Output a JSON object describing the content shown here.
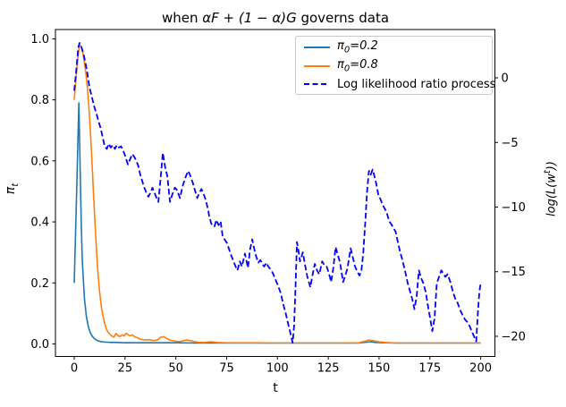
{
  "title": {
    "prefix": "when ",
    "math": "αF + (1 − α)G",
    "suffix": " governs data"
  },
  "axes": {
    "x": {
      "label": "t",
      "tick_values": [
        0,
        25,
        50,
        75,
        100,
        125,
        150,
        175,
        200
      ],
      "tick_labels": [
        "0",
        "25",
        "50",
        "75",
        "100",
        "125",
        "150",
        "175",
        "200"
      ]
    },
    "y_left": {
      "label_sym": "π",
      "label_sub": "t",
      "tick_values": [
        0.0,
        0.2,
        0.4,
        0.6,
        0.8,
        1.0
      ],
      "tick_labels": [
        "0.0",
        "0.2",
        "0.4",
        "0.6",
        "0.8",
        "1.0"
      ]
    },
    "y_right": {
      "label_pre": "log(L(w",
      "label_sup": "t",
      "label_post": "))",
      "tick_values": [
        0,
        -5,
        -10,
        -15,
        -20
      ],
      "tick_labels": [
        "0",
        "−5",
        "−10",
        "−15",
        "−20"
      ]
    }
  },
  "legend": {
    "items": [
      {
        "sym": "π",
        "sub": "0",
        "rest": "=0.2"
      },
      {
        "sym": "π",
        "sub": "0",
        "rest": "=0.8"
      },
      {
        "label": "Log likelihood ratio process"
      }
    ]
  },
  "chart_data": {
    "type": "line",
    "title": "when αF + (1 − α)G governs data",
    "xlabel": "t",
    "ylabel_left": "π_t",
    "ylabel_right": "log(L(w^t))",
    "grid": false,
    "legend_position": "upper right",
    "xlim": [
      -9.24,
      207.0
    ],
    "ylim_left": [
      -0.041,
      1.0305
    ],
    "ylim_right": [
      -21.56,
      3.74
    ],
    "axis_color": "#000000",
    "series": [
      {
        "name": "π0=0.2",
        "slug": "pi0-02-line",
        "axis": "left",
        "color": "#1f77b4",
        "style": "solid",
        "points": [
          [
            0,
            0.2
          ],
          [
            1,
            0.45
          ],
          [
            2.3,
            0.79
          ],
          [
            3,
            0.55
          ],
          [
            3.5,
            0.38
          ],
          [
            4,
            0.27
          ],
          [
            5,
            0.15
          ],
          [
            6,
            0.09
          ],
          [
            7,
            0.055
          ],
          [
            8,
            0.035
          ],
          [
            9,
            0.024
          ],
          [
            10,
            0.017
          ],
          [
            11,
            0.012
          ],
          [
            12,
            0.01
          ],
          [
            13,
            0.008
          ],
          [
            14,
            0.007
          ],
          [
            15,
            0.006
          ],
          [
            16,
            0.006
          ],
          [
            18,
            0.005
          ],
          [
            20,
            0.005
          ],
          [
            25,
            0.004
          ],
          [
            30,
            0.004
          ],
          [
            40,
            0.004
          ],
          [
            50,
            0.004
          ],
          [
            60,
            0.003
          ],
          [
            80,
            0.003
          ],
          [
            100,
            0.003
          ],
          [
            120,
            0.003
          ],
          [
            140,
            0.003
          ],
          [
            144,
            0.006
          ],
          [
            146,
            0.007
          ],
          [
            148,
            0.005
          ],
          [
            152,
            0.004
          ],
          [
            160,
            0.003
          ],
          [
            180,
            0.003
          ],
          [
            200,
            0.003
          ]
        ]
      },
      {
        "name": "π0=0.8",
        "slug": "pi0-08-line",
        "axis": "left",
        "color": "#ff7f0e",
        "style": "solid",
        "points": [
          [
            0,
            0.8
          ],
          [
            1,
            0.88
          ],
          [
            2,
            0.95
          ],
          [
            2.6,
            0.98
          ],
          [
            3.5,
            0.975
          ],
          [
            4.5,
            0.945
          ],
          [
            5.5,
            0.9
          ],
          [
            6.5,
            0.84
          ],
          [
            7.5,
            0.75
          ],
          [
            8.5,
            0.63
          ],
          [
            9.5,
            0.49
          ],
          [
            10.5,
            0.36
          ],
          [
            11.5,
            0.25
          ],
          [
            12.5,
            0.17
          ],
          [
            13.5,
            0.115
          ],
          [
            14.5,
            0.08
          ],
          [
            15.5,
            0.055
          ],
          [
            16.5,
            0.04
          ],
          [
            17.5,
            0.032
          ],
          [
            18.5,
            0.026
          ],
          [
            19.5,
            0.022
          ],
          [
            20.5,
            0.034
          ],
          [
            21.5,
            0.028
          ],
          [
            22.5,
            0.024
          ],
          [
            23.5,
            0.03
          ],
          [
            24.5,
            0.026
          ],
          [
            25.5,
            0.035
          ],
          [
            26.5,
            0.03
          ],
          [
            27.5,
            0.026
          ],
          [
            28.5,
            0.03
          ],
          [
            29.5,
            0.025
          ],
          [
            31,
            0.02
          ],
          [
            33,
            0.015
          ],
          [
            35,
            0.013
          ],
          [
            37,
            0.014
          ],
          [
            39,
            0.011
          ],
          [
            41,
            0.013
          ],
          [
            42.5,
            0.022
          ],
          [
            44,
            0.024
          ],
          [
            45.5,
            0.018
          ],
          [
            47,
            0.013
          ],
          [
            49,
            0.01
          ],
          [
            51,
            0.008
          ],
          [
            53,
            0.009
          ],
          [
            55,
            0.013
          ],
          [
            57,
            0.011
          ],
          [
            59,
            0.008
          ],
          [
            61,
            0.006
          ],
          [
            64,
            0.005
          ],
          [
            67,
            0.007
          ],
          [
            70,
            0.005
          ],
          [
            75,
            0.004
          ],
          [
            80,
            0.004
          ],
          [
            90,
            0.004
          ],
          [
            100,
            0.003
          ],
          [
            110,
            0.003
          ],
          [
            120,
            0.003
          ],
          [
            130,
            0.003
          ],
          [
            140,
            0.004
          ],
          [
            142.5,
            0.008
          ],
          [
            145,
            0.013
          ],
          [
            147,
            0.011
          ],
          [
            150,
            0.007
          ],
          [
            153,
            0.005
          ],
          [
            156,
            0.004
          ],
          [
            160,
            0.003
          ],
          [
            170,
            0.003
          ],
          [
            180,
            0.003
          ],
          [
            190,
            0.003
          ],
          [
            200,
            0.003
          ]
        ]
      },
      {
        "name": "Log likelihood ratio process",
        "slug": "log-likelihood-ratio-line",
        "axis": "right",
        "color": "#0000ff",
        "style": "dashed",
        "points": [
          [
            0,
            -1.0
          ],
          [
            1,
            0.6
          ],
          [
            2,
            2.3
          ],
          [
            2.6,
            2.7
          ],
          [
            3.5,
            2.4
          ],
          [
            4.5,
            1.9
          ],
          [
            5.5,
            1.2
          ],
          [
            6.5,
            0.3
          ],
          [
            7.5,
            -0.7
          ],
          [
            9,
            -1.7
          ],
          [
            10,
            -2.3
          ],
          [
            11,
            -2.8
          ],
          [
            12,
            -3.4
          ],
          [
            13,
            -3.9
          ],
          [
            14,
            -4.6
          ],
          [
            15,
            -5.3
          ],
          [
            16,
            -5.5
          ],
          [
            17,
            -5.1
          ],
          [
            18,
            -5.4
          ],
          [
            19,
            -5.2
          ],
          [
            20,
            -5.5
          ],
          [
            21,
            -5.2
          ],
          [
            22,
            -5.4
          ],
          [
            23,
            -5.3
          ],
          [
            24,
            -5.6
          ],
          [
            25,
            -6.0
          ],
          [
            26.4,
            -6.7
          ],
          [
            27.5,
            -6.3
          ],
          [
            28.6,
            -5.9
          ],
          [
            29.5,
            -6.1
          ],
          [
            30.5,
            -6.4
          ],
          [
            31.5,
            -6.8
          ],
          [
            32.5,
            -7.5
          ],
          [
            33.5,
            -8.0
          ],
          [
            34.5,
            -8.5
          ],
          [
            35.5,
            -8.9
          ],
          [
            36.5,
            -9.2
          ],
          [
            37.5,
            -8.9
          ],
          [
            38.5,
            -8.5
          ],
          [
            39.5,
            -8.9
          ],
          [
            40.5,
            -9.3
          ],
          [
            41.4,
            -9.6
          ],
          [
            42.5,
            -7.8
          ],
          [
            43.6,
            -5.8
          ],
          [
            44.6,
            -6.8
          ],
          [
            45.8,
            -7.6
          ],
          [
            47.1,
            -9.6
          ],
          [
            48.3,
            -9.0
          ],
          [
            49.5,
            -8.5
          ],
          [
            50.7,
            -8.7
          ],
          [
            52,
            -9.3
          ],
          [
            53.5,
            -8.3
          ],
          [
            55,
            -7.6
          ],
          [
            56.1,
            -7.2
          ],
          [
            57.2,
            -7.6
          ],
          [
            58.3,
            -8.1
          ],
          [
            59.4,
            -8.7
          ],
          [
            60.5,
            -9.3
          ],
          [
            61.6,
            -8.9
          ],
          [
            62.6,
            -8.6
          ],
          [
            63.7,
            -9.0
          ],
          [
            64.8,
            -9.5
          ],
          [
            66,
            -10.3
          ],
          [
            66.4,
            -10.7
          ],
          [
            67.5,
            -11.3
          ],
          [
            69,
            -11.5
          ],
          [
            70,
            -11.0
          ],
          [
            71,
            -11.4
          ],
          [
            72,
            -11.1
          ],
          [
            73,
            -12.2
          ],
          [
            74,
            -12.5
          ],
          [
            75.2,
            -12.8
          ],
          [
            76.3,
            -13.3
          ],
          [
            77.4,
            -13.8
          ],
          [
            78.4,
            -14.2
          ],
          [
            79.4,
            -14.6
          ],
          [
            80.3,
            -14.9
          ],
          [
            81.5,
            -14.2
          ],
          [
            82.5,
            -14.6
          ],
          [
            84,
            -13.6
          ],
          [
            85.5,
            -14.7
          ],
          [
            86.5,
            -13.3
          ],
          [
            87.6,
            -12.5
          ],
          [
            88.5,
            -13.2
          ],
          [
            89.5,
            -13.8
          ],
          [
            90.6,
            -14.3
          ],
          [
            91.6,
            -14.1
          ],
          [
            92.6,
            -14.4
          ],
          [
            93.5,
            -14.6
          ],
          [
            94.5,
            -14.3
          ],
          [
            95.5,
            -14.6
          ],
          [
            97,
            -14.9
          ],
          [
            98,
            -15.2
          ],
          [
            99,
            -15.6
          ],
          [
            100.1,
            -16.0
          ],
          [
            101.5,
            -16.6
          ],
          [
            103,
            -17.6
          ],
          [
            104.2,
            -18.3
          ],
          [
            105.2,
            -19.0
          ],
          [
            106.3,
            -19.7
          ],
          [
            107.5,
            -20.5
          ],
          [
            108.2,
            -19.2
          ],
          [
            108.9,
            -16.2
          ],
          [
            109.6,
            -12.7
          ],
          [
            110.4,
            -13.4
          ],
          [
            111.1,
            -14.2
          ],
          [
            112.5,
            -13.5
          ],
          [
            113.6,
            -14.5
          ],
          [
            114.7,
            -15.4
          ],
          [
            116.2,
            -16.2
          ],
          [
            117.2,
            -15.3
          ],
          [
            118.4,
            -14.4
          ],
          [
            119.5,
            -14.9
          ],
          [
            120.6,
            -15.2
          ],
          [
            122,
            -14.2
          ],
          [
            123.1,
            -14.5
          ],
          [
            124.2,
            -14.6
          ],
          [
            125.3,
            -15.1
          ],
          [
            126.4,
            -15.8
          ],
          [
            127.5,
            -14.7
          ],
          [
            128.6,
            -13.1
          ],
          [
            129.7,
            -13.7
          ],
          [
            130.8,
            -14.3
          ],
          [
            132.3,
            -15.8
          ],
          [
            133.4,
            -15.3
          ],
          [
            134.5,
            -14.7
          ],
          [
            136,
            -13.2
          ],
          [
            137.1,
            -13.9
          ],
          [
            138.2,
            -14.6
          ],
          [
            139.3,
            -15.0
          ],
          [
            140.4,
            -15.3
          ],
          [
            141.3,
            -14.9
          ],
          [
            142.2,
            -13.6
          ],
          [
            143.2,
            -11.2
          ],
          [
            144.1,
            -8.8
          ],
          [
            145,
            -7.2
          ],
          [
            145.9,
            -7.5
          ],
          [
            146.8,
            -7.1
          ],
          [
            147.7,
            -7.6
          ],
          [
            148.6,
            -8.2
          ],
          [
            149.6,
            -9.0
          ],
          [
            150.7,
            -9.4
          ],
          [
            152,
            -9.9
          ],
          [
            153.7,
            -10.4
          ],
          [
            155,
            -11.1
          ],
          [
            155.9,
            -11.3
          ],
          [
            157,
            -11.6
          ],
          [
            158.1,
            -11.9
          ],
          [
            159.2,
            -12.7
          ],
          [
            160.4,
            -13.5
          ],
          [
            161.5,
            -14.1
          ],
          [
            163,
            -15.1
          ],
          [
            164.1,
            -15.9
          ],
          [
            165.2,
            -16.5
          ],
          [
            166.3,
            -17.1
          ],
          [
            167.4,
            -17.9
          ],
          [
            168.5,
            -16.9
          ],
          [
            169.6,
            -14.9
          ],
          [
            170.7,
            -15.5
          ],
          [
            171.8,
            -15.9
          ],
          [
            173,
            -16.6
          ],
          [
            174,
            -17.6
          ],
          [
            175,
            -18.5
          ],
          [
            176.2,
            -19.6
          ],
          [
            177.3,
            -18.6
          ],
          [
            178.4,
            -15.9
          ],
          [
            179.3,
            -15.5
          ],
          [
            180.6,
            -14.9
          ],
          [
            181.5,
            -15.1
          ],
          [
            182.6,
            -15.4
          ],
          [
            183.7,
            -15.2
          ],
          [
            185.1,
            -15.8
          ],
          [
            186.4,
            -16.6
          ],
          [
            187.5,
            -17.1
          ],
          [
            188.6,
            -17.4
          ],
          [
            190,
            -18.0
          ],
          [
            191.2,
            -18.4
          ],
          [
            192.3,
            -18.7
          ],
          [
            193.4,
            -18.9
          ],
          [
            194.5,
            -19.2
          ],
          [
            195.6,
            -19.6
          ],
          [
            196.7,
            -20.0
          ],
          [
            197.8,
            -20.4
          ],
          [
            198.7,
            -18.0
          ],
          [
            199.4,
            -16.5
          ],
          [
            200,
            -15.9
          ]
        ]
      }
    ]
  }
}
